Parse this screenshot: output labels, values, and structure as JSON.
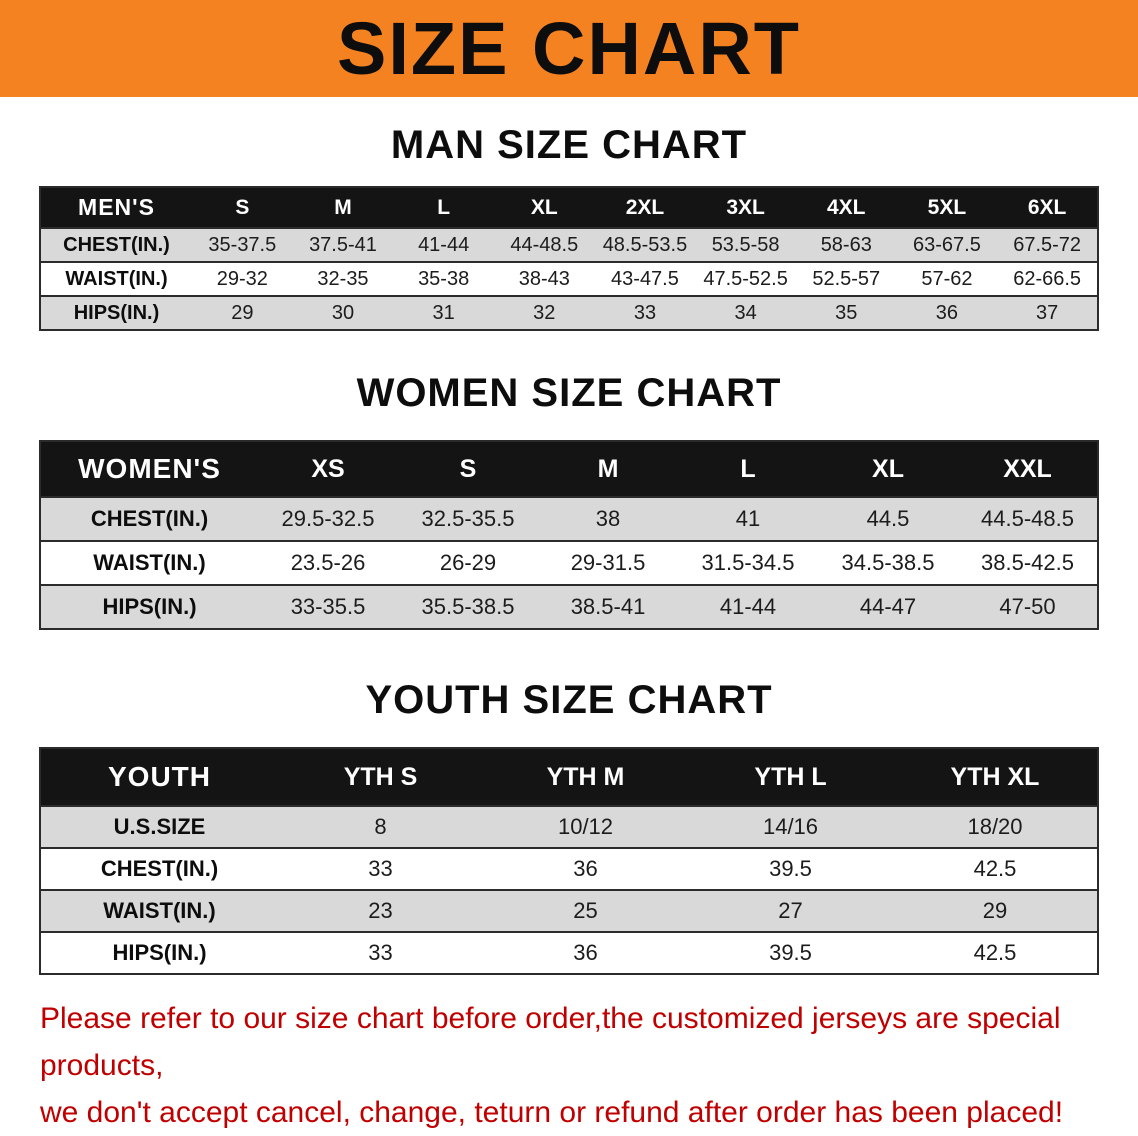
{
  "banner": {
    "title": "SIZE CHART"
  },
  "sections": [
    {
      "heading": "MAN SIZE CHART",
      "table": {
        "header": [
          "MEN'S",
          "S",
          "M",
          "L",
          "XL",
          "2XL",
          "3XL",
          "4XL",
          "5XL",
          "6XL"
        ],
        "rows": [
          {
            "label": "CHEST(IN.)",
            "values": [
              "35-37.5",
              "37.5-41",
              "41-44",
              "44-48.5",
              "48.5-53.5",
              "53.5-58",
              "58-63",
              "63-67.5",
              "67.5-72"
            ]
          },
          {
            "label": "WAIST(IN.)",
            "values": [
              "29-32",
              "32-35",
              "35-38",
              "38-43",
              "43-47.5",
              "47.5-52.5",
              "52.5-57",
              "57-62",
              "62-66.5"
            ]
          },
          {
            "label": "HIPS(IN.)",
            "values": [
              "29",
              "30",
              "31",
              "32",
              "33",
              "34",
              "35",
              "36",
              "37"
            ]
          }
        ]
      }
    },
    {
      "heading": "WOMEN SIZE CHART",
      "table": {
        "header": [
          "WOMEN'S",
          "XS",
          "S",
          "M",
          "L",
          "XL",
          "XXL"
        ],
        "rows": [
          {
            "label": "CHEST(IN.)",
            "values": [
              "29.5-32.5",
              "32.5-35.5",
              "38",
              "41",
              "44.5",
              "44.5-48.5"
            ]
          },
          {
            "label": "WAIST(IN.)",
            "values": [
              "23.5-26",
              "26-29",
              "29-31.5",
              "31.5-34.5",
              "34.5-38.5",
              "38.5-42.5"
            ]
          },
          {
            "label": "HIPS(IN.)",
            "values": [
              "33-35.5",
              "35.5-38.5",
              "38.5-41",
              "41-44",
              "44-47",
              "47-50"
            ]
          }
        ]
      }
    },
    {
      "heading": "YOUTH SIZE CHART",
      "table": {
        "header": [
          "YOUTH",
          "YTH S",
          "YTH M",
          "YTH L",
          "YTH XL"
        ],
        "rows": [
          {
            "label": "U.S.SIZE",
            "values": [
              "8",
              "10/12",
              "14/16",
              "18/20"
            ]
          },
          {
            "label": "CHEST(IN.)",
            "values": [
              "33",
              "36",
              "39.5",
              "42.5"
            ]
          },
          {
            "label": "WAIST(IN.)",
            "values": [
              "23",
              "25",
              "27",
              "29"
            ]
          },
          {
            "label": "HIPS(IN.)",
            "values": [
              "33",
              "36",
              "39.5",
              "42.5"
            ]
          }
        ]
      }
    }
  ],
  "disclaimer": {
    "lines": [
      "Please refer to our size chart before order,the customized jerseys are special products,",
      "we don't accept cancel, change, teturn or refund after order has been placed!"
    ]
  },
  "colors": {
    "banner_bg": "#f58220",
    "header_bg": "#141414",
    "row_stripe": "#d9d9d9",
    "disclaimer_text": "#c00000",
    "table_border": "#2b2b2b"
  }
}
